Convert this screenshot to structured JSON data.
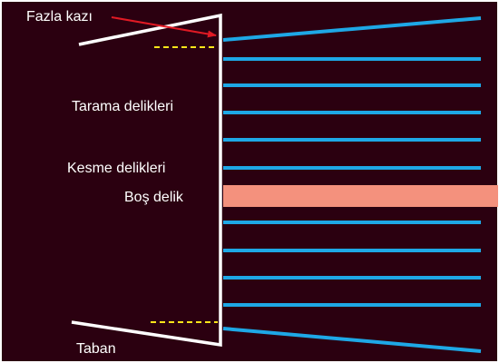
{
  "labels": {
    "overbreak": "Fazla kazı",
    "scan_holes": "Tarama delikleri",
    "cut_holes": "Kesme delikleri",
    "empty_hole": "Boş delik",
    "floor": "Taban"
  },
  "colors": {
    "background": "#2b0010",
    "border": "#ffffff",
    "hole": "#1ea8e6",
    "empty_hole": "#f4917d",
    "guide": "#ffe61a",
    "arrow": "#e01a24",
    "outline": "#ffffff"
  },
  "counts": {
    "parallel_holes": 8,
    "angled_holes": 2,
    "empty_holes": 1,
    "guide_lines": 2
  },
  "icons": {
    "arrow": "red-arrow"
  }
}
